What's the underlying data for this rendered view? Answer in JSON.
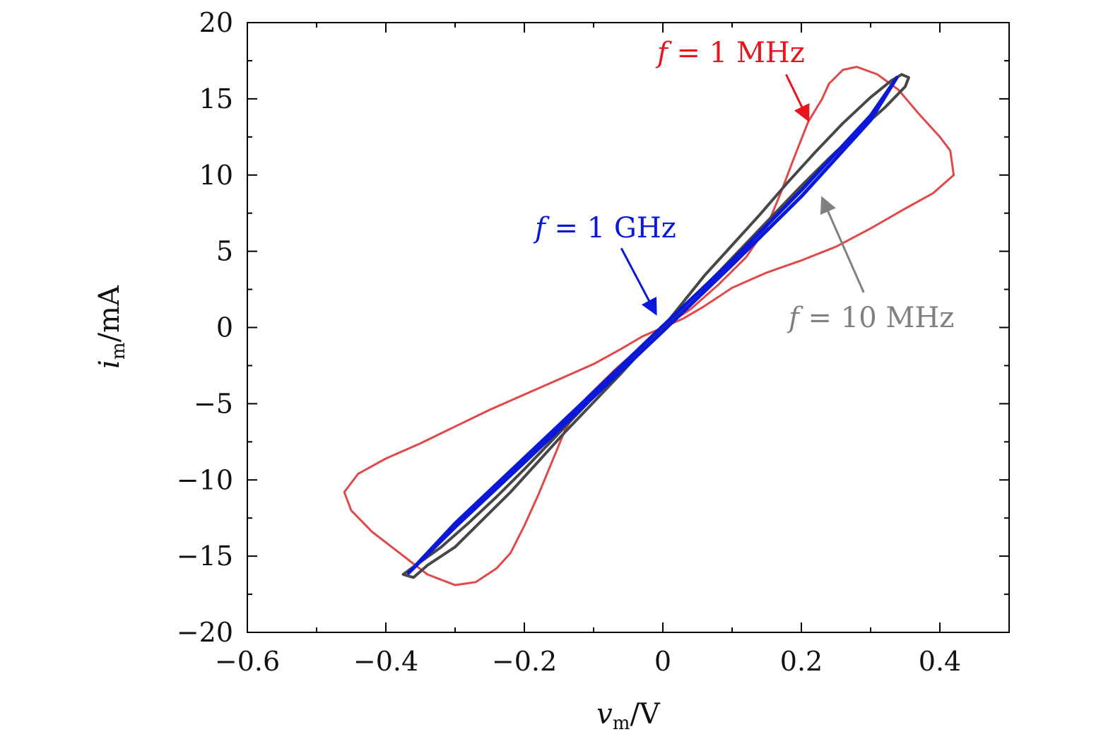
{
  "chart_data": {
    "type": "line",
    "xlabel": {
      "base": "v",
      "sub": "m",
      "unit": "/V"
    },
    "ylabel": {
      "base": "i",
      "sub": "m",
      "unit": "/mA"
    },
    "xlim": [
      -0.6,
      0.5
    ],
    "ylim": [
      -20,
      20
    ],
    "xticks": [
      -0.6,
      -0.4,
      -0.2,
      0,
      0.2,
      0.4
    ],
    "xtick_labels": [
      "−0.6",
      "−0.4",
      "−0.2",
      "0",
      "0.2",
      "0.4"
    ],
    "yticks": [
      -20,
      -15,
      -10,
      -5,
      0,
      5,
      10,
      15,
      20
    ],
    "ytick_labels": [
      "−20",
      "−15",
      "−10",
      "−5",
      "0",
      "5",
      "10",
      "15",
      "20"
    ],
    "grid": false,
    "series": [
      {
        "color": "#e0484a",
        "points": [
          [
            0,
            0
          ],
          [
            0.03,
            0.6
          ],
          [
            0.06,
            1.4
          ],
          [
            0.1,
            2.6
          ],
          [
            0.15,
            3.6
          ],
          [
            0.2,
            4.4
          ],
          [
            0.25,
            5.3
          ],
          [
            0.3,
            6.5
          ],
          [
            0.35,
            7.8
          ],
          [
            0.39,
            8.8
          ],
          [
            0.42,
            10
          ],
          [
            0.415,
            11.6
          ],
          [
            0.4,
            12.5
          ],
          [
            0.37,
            14
          ],
          [
            0.34,
            15.6
          ],
          [
            0.31,
            16.6
          ],
          [
            0.28,
            17.1
          ],
          [
            0.26,
            16.9
          ],
          [
            0.24,
            16
          ],
          [
            0.23,
            15
          ],
          [
            0.21,
            13.5
          ],
          [
            0.19,
            11.2
          ],
          [
            0.17,
            8.8
          ],
          [
            0.15,
            6.6
          ],
          [
            0.12,
            4.6
          ],
          [
            0.08,
            2.8
          ],
          [
            0.04,
            1.2
          ],
          [
            0,
            0
          ],
          [
            -0.03,
            -0.6
          ],
          [
            -0.06,
            -1.4
          ],
          [
            -0.1,
            -2.4
          ],
          [
            -0.15,
            -3.4
          ],
          [
            -0.2,
            -4.4
          ],
          [
            -0.25,
            -5.4
          ],
          [
            -0.3,
            -6.5
          ],
          [
            -0.35,
            -7.6
          ],
          [
            -0.4,
            -8.6
          ],
          [
            -0.44,
            -9.6
          ],
          [
            -0.46,
            -10.8
          ],
          [
            -0.45,
            -12
          ],
          [
            -0.42,
            -13.4
          ],
          [
            -0.38,
            -14.8
          ],
          [
            -0.34,
            -16.2
          ],
          [
            -0.3,
            -16.9
          ],
          [
            -0.27,
            -16.7
          ],
          [
            -0.24,
            -15.8
          ],
          [
            -0.22,
            -14.8
          ],
          [
            -0.2,
            -13
          ],
          [
            -0.18,
            -11
          ],
          [
            -0.16,
            -8.8
          ],
          [
            -0.14,
            -6.6
          ],
          [
            -0.11,
            -4.6
          ],
          [
            -0.07,
            -2.8
          ],
          [
            -0.03,
            -1.2
          ],
          [
            0,
            0
          ]
        ]
      },
      {
        "color": "#474747",
        "points": [
          [
            0,
            0
          ],
          [
            0.04,
            1.8
          ],
          [
            0.08,
            3.6
          ],
          [
            0.12,
            5.5
          ],
          [
            0.16,
            7.4
          ],
          [
            0.2,
            9.3
          ],
          [
            0.24,
            11.1
          ],
          [
            0.28,
            12.8
          ],
          [
            0.32,
            14.4
          ],
          [
            0.35,
            15.8
          ],
          [
            0.355,
            16.4
          ],
          [
            0.345,
            16.6
          ],
          [
            0.33,
            16.2
          ],
          [
            0.3,
            15.1
          ],
          [
            0.26,
            13.4
          ],
          [
            0.22,
            11.5
          ],
          [
            0.18,
            9.5
          ],
          [
            0.14,
            7.4
          ],
          [
            0.1,
            5.4
          ],
          [
            0.06,
            3.4
          ],
          [
            0.03,
            1.7
          ],
          [
            0,
            0
          ],
          [
            -0.04,
            -1.8
          ],
          [
            -0.08,
            -3.6
          ],
          [
            -0.12,
            -5.5
          ],
          [
            -0.16,
            -7.4
          ],
          [
            -0.2,
            -9.3
          ],
          [
            -0.24,
            -11.1
          ],
          [
            -0.28,
            -12.8
          ],
          [
            -0.32,
            -14.4
          ],
          [
            -0.36,
            -15.7
          ],
          [
            -0.375,
            -16.2
          ],
          [
            -0.36,
            -16.4
          ],
          [
            -0.34,
            -15.6
          ],
          [
            -0.3,
            -14.4
          ],
          [
            -0.26,
            -12.6
          ],
          [
            -0.22,
            -10.8
          ],
          [
            -0.18,
            -8.8
          ],
          [
            -0.14,
            -6.8
          ],
          [
            -0.1,
            -4.9
          ],
          [
            -0.06,
            -3
          ],
          [
            -0.03,
            -1.5
          ],
          [
            0,
            0
          ]
        ]
      },
      {
        "color": "#0a18d8",
        "points": [
          [
            -0.367,
            -16.1
          ],
          [
            -0.3,
            -13.1
          ],
          [
            -0.2,
            -8.85
          ],
          [
            -0.1,
            -4.55
          ],
          [
            0,
            -0.25
          ],
          [
            0.1,
            4.1
          ],
          [
            0.2,
            8.6
          ],
          [
            0.3,
            13.6
          ],
          [
            0.338,
            16.4
          ],
          [
            0.3,
            13.9
          ],
          [
            0.2,
            9
          ],
          [
            0.1,
            4.4
          ],
          [
            0,
            0.1
          ],
          [
            -0.1,
            -4.25
          ],
          [
            -0.2,
            -8.55
          ],
          [
            -0.3,
            -12.85
          ],
          [
            -0.367,
            -16.1
          ]
        ]
      }
    ],
    "annotations": [
      {
        "var": "f",
        "eq": " = 1 MHz",
        "color": "#e8141e",
        "arrow": {
          "from": [
            0.178,
            16.6
          ],
          "to": [
            0.21,
            13.6
          ]
        }
      },
      {
        "var": "f",
        "eq": " = 1 GHz",
        "color": "#0a18d8",
        "arrow": {
          "from": [
            -0.06,
            5.2
          ],
          "to": [
            -0.01,
            0.9
          ]
        }
      },
      {
        "var": "f",
        "eq": " = 10 MHz",
        "color": "#808080",
        "arrow": {
          "from": [
            0.29,
            2.3
          ],
          "to": [
            0.23,
            8.5
          ]
        }
      }
    ]
  }
}
